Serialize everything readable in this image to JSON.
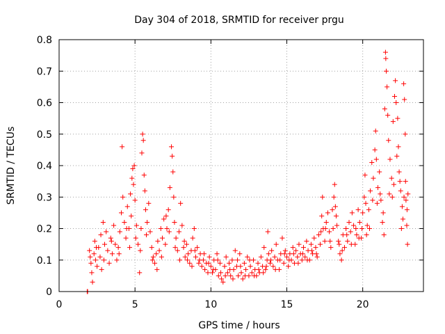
{
  "chart_data": {
    "type": "scatter",
    "title": "Day 304 of 2018, SRMTID for receiver prgu",
    "xlabel": "GPS time / hours",
    "ylabel": "SRMTID / TECUs",
    "xlim": [
      0,
      24
    ],
    "ylim": [
      0,
      0.8
    ],
    "xticks": [
      0,
      5,
      10,
      15,
      20
    ],
    "yticks": [
      0,
      0.1,
      0.2,
      0.3,
      0.4,
      0.5,
      0.6,
      0.7,
      0.8
    ],
    "xtick_labels": [
      "0",
      "5",
      "10",
      "15",
      "20"
    ],
    "ytick_labels": [
      "0",
      "0.1",
      "0.2",
      "0.3",
      "0.4",
      "0.5",
      "0.6",
      "0.7",
      "0.8"
    ],
    "grid": true,
    "marker": "+",
    "color": "#ff0000",
    "series": [
      {
        "name": "SRMTID",
        "points": [
          [
            1.85,
            0.0
          ],
          [
            1.88,
            0.0
          ],
          [
            2.0,
            0.13
          ],
          [
            2.1,
            0.09
          ],
          [
            2.15,
            0.06
          ],
          [
            2.2,
            0.03
          ],
          [
            2.3,
            0.12
          ],
          [
            2.35,
            0.16
          ],
          [
            2.4,
            0.1
          ],
          [
            2.5,
            0.08
          ],
          [
            2.6,
            0.14
          ],
          [
            2.7,
            0.11
          ],
          [
            2.75,
            0.18
          ],
          [
            2.8,
            0.07
          ],
          [
            2.9,
            0.22
          ],
          [
            3.0,
            0.15
          ],
          [
            3.1,
            0.19
          ],
          [
            3.2,
            0.13
          ],
          [
            3.3,
            0.09
          ],
          [
            3.4,
            0.17
          ],
          [
            3.5,
            0.12
          ],
          [
            3.6,
            0.21
          ],
          [
            3.7,
            0.15
          ],
          [
            3.8,
            0.1
          ],
          [
            3.9,
            0.14
          ],
          [
            4.0,
            0.19
          ],
          [
            4.1,
            0.25
          ],
          [
            4.15,
            0.46
          ],
          [
            4.2,
            0.3
          ],
          [
            4.3,
            0.22
          ],
          [
            4.4,
            0.17
          ],
          [
            4.5,
            0.27
          ],
          [
            4.6,
            0.2
          ],
          [
            4.7,
            0.31
          ],
          [
            4.75,
            0.24
          ],
          [
            4.8,
            0.36
          ],
          [
            4.85,
            0.39
          ],
          [
            4.9,
            0.34
          ],
          [
            4.95,
            0.4
          ],
          [
            5.0,
            0.29
          ],
          [
            5.1,
            0.21
          ],
          [
            5.2,
            0.15
          ],
          [
            5.3,
            0.06
          ],
          [
            5.35,
            0.13
          ],
          [
            5.4,
            0.2
          ],
          [
            5.45,
            0.44
          ],
          [
            5.5,
            0.5
          ],
          [
            5.55,
            0.48
          ],
          [
            5.6,
            0.37
          ],
          [
            5.65,
            0.32
          ],
          [
            5.7,
            0.26
          ],
          [
            5.8,
            0.22
          ],
          [
            5.9,
            0.28
          ],
          [
            6.0,
            0.19
          ],
          [
            6.1,
            0.14
          ],
          [
            6.2,
            0.11
          ],
          [
            6.3,
            0.09
          ],
          [
            6.4,
            0.12
          ],
          [
            6.5,
            0.16
          ],
          [
            6.6,
            0.13
          ],
          [
            6.7,
            0.2
          ],
          [
            6.8,
            0.17
          ],
          [
            6.9,
            0.23
          ],
          [
            7.0,
            0.15
          ],
          [
            7.1,
            0.2
          ],
          [
            7.2,
            0.26
          ],
          [
            7.3,
            0.33
          ],
          [
            7.4,
            0.46
          ],
          [
            7.45,
            0.43
          ],
          [
            7.5,
            0.38
          ],
          [
            7.55,
            0.3
          ],
          [
            7.6,
            0.22
          ],
          [
            7.7,
            0.17
          ],
          [
            7.8,
            0.13
          ],
          [
            7.9,
            0.19
          ],
          [
            8.0,
            0.28
          ],
          [
            8.1,
            0.21
          ],
          [
            8.2,
            0.14
          ],
          [
            8.3,
            0.11
          ],
          [
            8.4,
            0.15
          ],
          [
            8.5,
            0.12
          ],
          [
            8.6,
            0.09
          ],
          [
            8.7,
            0.13
          ],
          [
            8.8,
            0.17
          ],
          [
            8.9,
            0.2
          ],
          [
            9.0,
            0.11
          ],
          [
            9.1,
            0.14
          ],
          [
            9.2,
            0.09
          ],
          [
            9.3,
            0.12
          ],
          [
            9.4,
            0.08
          ],
          [
            9.5,
            0.1
          ],
          [
            9.6,
            0.07
          ],
          [
            9.7,
            0.09
          ],
          [
            9.8,
            0.06
          ],
          [
            9.9,
            0.11
          ],
          [
            10.0,
            0.08
          ],
          [
            10.1,
            0.06
          ],
          [
            10.2,
            0.1
          ],
          [
            10.3,
            0.07
          ],
          [
            10.4,
            0.12
          ],
          [
            10.5,
            0.05
          ],
          [
            10.6,
            0.09
          ],
          [
            10.7,
            0.04
          ],
          [
            10.8,
            0.03
          ],
          [
            10.9,
            0.08
          ],
          [
            11.0,
            0.11
          ],
          [
            11.1,
            0.06
          ],
          [
            11.2,
            0.09
          ],
          [
            11.3,
            0.05
          ],
          [
            11.4,
            0.1
          ],
          [
            11.5,
            0.07
          ],
          [
            11.6,
            0.13
          ],
          [
            11.7,
            0.08
          ],
          [
            11.8,
            0.05
          ],
          [
            11.9,
            0.12
          ],
          [
            12.0,
            0.06
          ],
          [
            12.1,
            0.04
          ],
          [
            12.2,
            0.09
          ],
          [
            12.3,
            0.07
          ],
          [
            12.4,
            0.11
          ],
          [
            12.5,
            0.05
          ],
          [
            12.6,
            0.08
          ],
          [
            12.7,
            0.06
          ],
          [
            12.8,
            0.1
          ],
          [
            12.9,
            0.07
          ],
          [
            13.0,
            0.05
          ],
          [
            13.1,
            0.09
          ],
          [
            13.2,
            0.06
          ],
          [
            13.3,
            0.11
          ],
          [
            13.4,
            0.08
          ],
          [
            13.5,
            0.14
          ],
          [
            13.6,
            0.07
          ],
          [
            13.7,
            0.1
          ],
          [
            13.75,
            0.19
          ],
          [
            13.8,
            0.12
          ],
          [
            13.9,
            0.09
          ],
          [
            14.0,
            0.13
          ],
          [
            14.1,
            0.08
          ],
          [
            14.2,
            0.11
          ],
          [
            14.3,
            0.15
          ],
          [
            14.4,
            0.1
          ],
          [
            14.5,
            0.07
          ],
          [
            14.6,
            0.12
          ],
          [
            14.7,
            0.17
          ],
          [
            14.8,
            0.09
          ],
          [
            14.9,
            0.13
          ],
          [
            15.0,
            0.11
          ],
          [
            15.1,
            0.08
          ],
          [
            15.2,
            0.12
          ],
          [
            15.3,
            0.1
          ],
          [
            15.4,
            0.14
          ],
          [
            15.5,
            0.09
          ],
          [
            15.6,
            0.13
          ],
          [
            15.7,
            0.11
          ],
          [
            15.8,
            0.15
          ],
          [
            15.9,
            0.12
          ],
          [
            16.0,
            0.1
          ],
          [
            16.1,
            0.14
          ],
          [
            16.2,
            0.11
          ],
          [
            16.3,
            0.16
          ],
          [
            16.4,
            0.13
          ],
          [
            16.5,
            0.1
          ],
          [
            16.6,
            0.15
          ],
          [
            16.7,
            0.12
          ],
          [
            16.8,
            0.17
          ],
          [
            16.9,
            0.14
          ],
          [
            17.0,
            0.11
          ],
          [
            17.1,
            0.18
          ],
          [
            17.2,
            0.15
          ],
          [
            17.3,
            0.24
          ],
          [
            17.35,
            0.3
          ],
          [
            17.4,
            0.2
          ],
          [
            17.5,
            0.16
          ],
          [
            17.6,
            0.22
          ],
          [
            17.7,
            0.25
          ],
          [
            17.8,
            0.19
          ],
          [
            17.9,
            0.14
          ],
          [
            18.0,
            0.26
          ],
          [
            18.1,
            0.3
          ],
          [
            18.15,
            0.34
          ],
          [
            18.2,
            0.27
          ],
          [
            18.3,
            0.21
          ],
          [
            18.4,
            0.16
          ],
          [
            18.5,
            0.12
          ],
          [
            18.6,
            0.1
          ],
          [
            18.7,
            0.18
          ],
          [
            18.8,
            0.14
          ],
          [
            18.9,
            0.2
          ],
          [
            19.0,
            0.16
          ],
          [
            19.1,
            0.22
          ],
          [
            19.2,
            0.19
          ],
          [
            19.3,
            0.25
          ],
          [
            19.4,
            0.21
          ],
          [
            19.5,
            0.15
          ],
          [
            19.6,
            0.18
          ],
          [
            19.7,
            0.26
          ],
          [
            19.8,
            0.22
          ],
          [
            19.9,
            0.17
          ],
          [
            20.0,
            0.25
          ],
          [
            20.1,
            0.3
          ],
          [
            20.15,
            0.37
          ],
          [
            20.2,
            0.28
          ],
          [
            20.3,
            0.21
          ],
          [
            20.4,
            0.26
          ],
          [
            20.5,
            0.32
          ],
          [
            20.6,
            0.41
          ],
          [
            20.7,
            0.36
          ],
          [
            20.8,
            0.45
          ],
          [
            20.85,
            0.51
          ],
          [
            20.9,
            0.42
          ],
          [
            21.0,
            0.33
          ],
          [
            21.1,
            0.38
          ],
          [
            21.2,
            0.29
          ],
          [
            21.3,
            0.22
          ],
          [
            21.4,
            0.18
          ],
          [
            21.45,
            0.58
          ],
          [
            21.5,
            0.76
          ],
          [
            21.52,
            0.74
          ],
          [
            21.55,
            0.7
          ],
          [
            21.6,
            0.65
          ],
          [
            21.65,
            0.56
          ],
          [
            21.7,
            0.48
          ],
          [
            21.8,
            0.42
          ],
          [
            21.9,
            0.36
          ],
          [
            22.0,
            0.54
          ],
          [
            22.1,
            0.62
          ],
          [
            22.15,
            0.67
          ],
          [
            22.2,
            0.6
          ],
          [
            22.3,
            0.55
          ],
          [
            22.35,
            0.46
          ],
          [
            22.4,
            0.38
          ],
          [
            22.5,
            0.32
          ],
          [
            22.6,
            0.27
          ],
          [
            22.65,
            0.23
          ],
          [
            22.7,
            0.66
          ],
          [
            22.75,
            0.61
          ],
          [
            22.8,
            0.5
          ],
          [
            22.85,
            0.29
          ],
          [
            22.9,
            0.21
          ],
          [
            22.95,
            0.15
          ],
          [
            2.05,
            0.11
          ],
          [
            2.45,
            0.14
          ],
          [
            2.95,
            0.1
          ],
          [
            3.45,
            0.16
          ],
          [
            3.95,
            0.12
          ],
          [
            4.45,
            0.2
          ],
          [
            4.65,
            0.14
          ],
          [
            5.05,
            0.17
          ],
          [
            5.75,
            0.18
          ],
          [
            6.15,
            0.1
          ],
          [
            6.45,
            0.07
          ],
          [
            6.75,
            0.11
          ],
          [
            7.05,
            0.24
          ],
          [
            7.25,
            0.19
          ],
          [
            7.65,
            0.14
          ],
          [
            7.95,
            0.1
          ],
          [
            8.25,
            0.16
          ],
          [
            8.45,
            0.1
          ],
          [
            8.75,
            0.08
          ],
          [
            8.95,
            0.13
          ],
          [
            9.25,
            0.1
          ],
          [
            9.55,
            0.12
          ],
          [
            9.85,
            0.09
          ],
          [
            10.15,
            0.07
          ],
          [
            10.45,
            0.1
          ],
          [
            10.65,
            0.06
          ],
          [
            10.95,
            0.05
          ],
          [
            11.25,
            0.07
          ],
          [
            11.45,
            0.04
          ],
          [
            11.75,
            0.1
          ],
          [
            11.95,
            0.08
          ],
          [
            12.25,
            0.05
          ],
          [
            12.55,
            0.1
          ],
          [
            12.85,
            0.05
          ],
          [
            13.15,
            0.07
          ],
          [
            13.45,
            0.06
          ],
          [
            13.65,
            0.08
          ],
          [
            13.95,
            0.1
          ],
          [
            14.25,
            0.07
          ],
          [
            14.55,
            0.1
          ],
          [
            14.85,
            0.12
          ],
          [
            15.15,
            0.1
          ],
          [
            15.45,
            0.12
          ],
          [
            15.75,
            0.09
          ],
          [
            16.05,
            0.12
          ],
          [
            16.35,
            0.1
          ],
          [
            16.65,
            0.13
          ],
          [
            16.95,
            0.12
          ],
          [
            17.25,
            0.19
          ],
          [
            17.55,
            0.2
          ],
          [
            17.85,
            0.16
          ],
          [
            18.05,
            0.2
          ],
          [
            18.25,
            0.24
          ],
          [
            18.45,
            0.15
          ],
          [
            18.65,
            0.13
          ],
          [
            18.95,
            0.18
          ],
          [
            19.25,
            0.15
          ],
          [
            19.55,
            0.2
          ],
          [
            19.75,
            0.17
          ],
          [
            19.95,
            0.2
          ],
          [
            20.25,
            0.18
          ],
          [
            20.45,
            0.2
          ],
          [
            20.65,
            0.29
          ],
          [
            20.95,
            0.28
          ],
          [
            21.15,
            0.31
          ],
          [
            21.35,
            0.25
          ],
          [
            21.75,
            0.31
          ],
          [
            21.95,
            0.3
          ],
          [
            22.05,
            0.34
          ],
          [
            22.25,
            0.43
          ],
          [
            22.45,
            0.35
          ],
          [
            22.55,
            0.2
          ],
          [
            22.72,
            0.3
          ],
          [
            22.82,
            0.35
          ],
          [
            22.92,
            0.26
          ],
          [
            22.98,
            0.31
          ]
        ]
      }
    ]
  }
}
